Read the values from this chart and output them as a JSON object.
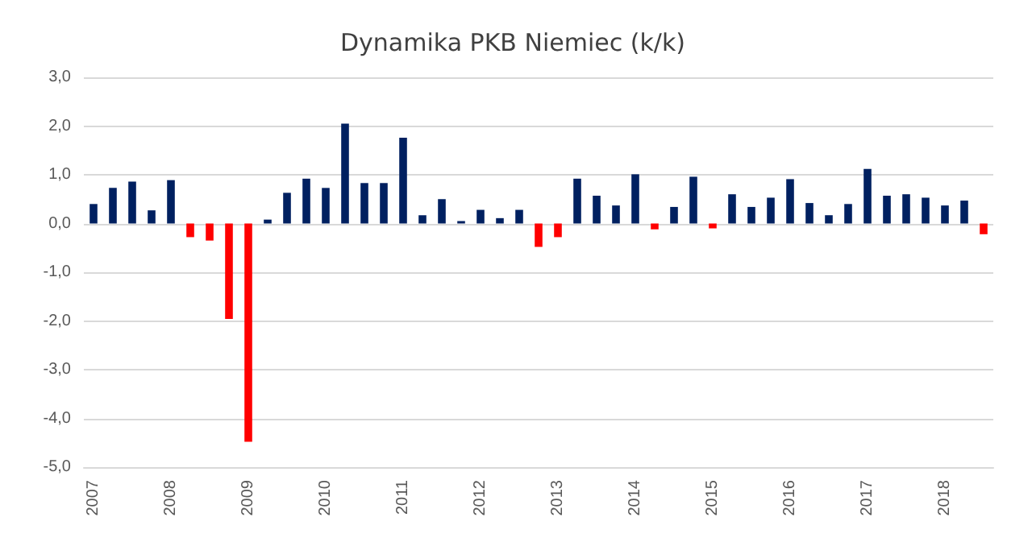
{
  "chart_data": {
    "type": "bar",
    "title": "Dynamika PKB Niemiec (k/k)",
    "categories": [
      "2007",
      null,
      null,
      null,
      "2008",
      null,
      null,
      null,
      "2009",
      null,
      null,
      null,
      "2010",
      null,
      null,
      null,
      "2011",
      null,
      null,
      null,
      "2012",
      null,
      null,
      null,
      "2013",
      null,
      null,
      null,
      "2014",
      null,
      null,
      null,
      "2015",
      null,
      null,
      null,
      "2016",
      null,
      null,
      null,
      "2017",
      null,
      null,
      null,
      "2018",
      null,
      null
    ],
    "values": [
      0.4,
      0.73,
      0.86,
      0.27,
      0.89,
      -0.28,
      -0.35,
      -1.96,
      -4.48,
      0.08,
      0.63,
      0.92,
      0.73,
      2.05,
      0.83,
      0.83,
      1.76,
      0.17,
      0.5,
      0.05,
      0.28,
      0.11,
      0.28,
      -0.48,
      -0.28,
      0.92,
      0.57,
      0.37,
      1.01,
      -0.12,
      0.34,
      0.96,
      -0.1,
      0.6,
      0.34,
      0.53,
      0.91,
      0.42,
      0.17,
      0.4,
      1.12,
      0.57,
      0.6,
      0.53,
      0.37,
      0.47,
      -0.22
    ],
    "colors": [
      "#002060",
      "#002060",
      "#002060",
      "#002060",
      "#002060",
      "#ff0000",
      "#ff0000",
      "#ff0000",
      "#ff0000",
      "#002060",
      "#002060",
      "#002060",
      "#002060",
      "#002060",
      "#002060",
      "#002060",
      "#002060",
      "#002060",
      "#002060",
      "#002060",
      "#002060",
      "#002060",
      "#002060",
      "#ff0000",
      "#ff0000",
      "#002060",
      "#002060",
      "#002060",
      "#002060",
      "#ff0000",
      "#002060",
      "#002060",
      "#ff0000",
      "#002060",
      "#002060",
      "#002060",
      "#002060",
      "#002060",
      "#002060",
      "#002060",
      "#002060",
      "#002060",
      "#002060",
      "#002060",
      "#002060",
      "#002060",
      "#ff0000"
    ],
    "ylim": [
      -5,
      3
    ],
    "yticks": [
      {
        "value": -5,
        "label": "-5,0"
      },
      {
        "value": -4,
        "label": "-4,0"
      },
      {
        "value": -3,
        "label": "-3,0"
      },
      {
        "value": -2,
        "label": "-2,0"
      },
      {
        "value": -1,
        "label": "-1,0"
      },
      {
        "value": 0,
        "label": "0,0"
      },
      {
        "value": 1,
        "label": "1,0"
      },
      {
        "value": 2,
        "label": "2,0"
      },
      {
        "value": 3,
        "label": "3,0"
      }
    ],
    "grid": "y"
  }
}
